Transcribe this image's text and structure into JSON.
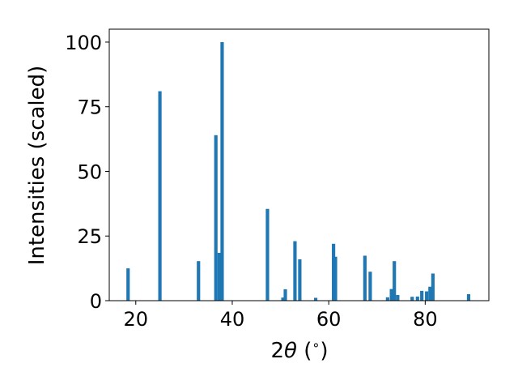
{
  "chart_data": {
    "type": "bar",
    "xlabel_parts": [
      "2",
      "θ",
      " (",
      "∘",
      ")"
    ],
    "ylabel": "Intensities (scaled)",
    "xlim": [
      14.5,
      93.2
    ],
    "ylim": [
      0,
      105
    ],
    "xticks": [
      20,
      40,
      60,
      80
    ],
    "yticks": [
      0,
      25,
      50,
      75,
      100
    ],
    "grid": false,
    "bar_color": "#1f77b4",
    "bar_width": 0.7,
    "x": [
      18.4,
      25.0,
      33.0,
      36.6,
      37.3,
      37.9,
      47.3,
      50.5,
      51.0,
      53.0,
      54.0,
      57.3,
      61.0,
      61.4,
      67.5,
      68.6,
      72.2,
      73.0,
      73.6,
      74.3,
      77.3,
      78.4,
      79.3,
      80.3,
      81.0,
      81.6,
      89.0
    ],
    "values": [
      12.5,
      81,
      15.3,
      64,
      18.5,
      100,
      35.5,
      1.2,
      4.4,
      23,
      16,
      1.1,
      22,
      17,
      17.4,
      11.2,
      1.3,
      4.5,
      15.3,
      2.2,
      1.5,
      1.6,
      3.8,
      3.6,
      5.4,
      10.5,
      2.5
    ]
  }
}
